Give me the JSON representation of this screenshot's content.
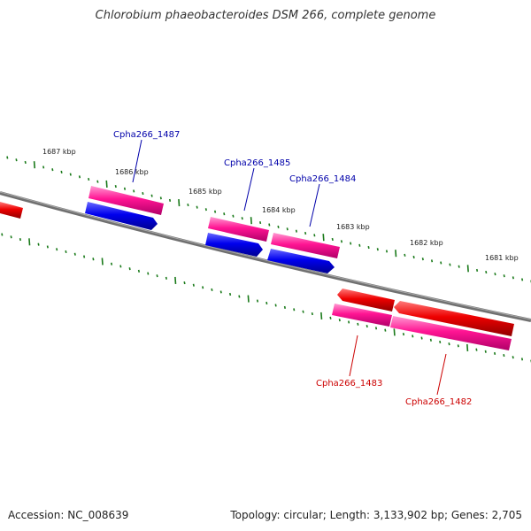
{
  "title": "Chlorobium phaeobacteroides DSM 266, complete genome",
  "footer": {
    "accession": "Accession: NC_008639",
    "summary": "Topology: circular; Length: 3,133,902 bp; Genes: 2,705"
  },
  "scale": {
    "unit": "kbp",
    "ticks": [
      "1687 kbp",
      "1686 kbp",
      "1685 kbp",
      "1684 kbp",
      "1683 kbp",
      "1682 kbp",
      "1681 kbp"
    ]
  },
  "genes": [
    {
      "locus_tag": "Cpha266_1487",
      "strand": "forward",
      "label_color": "#0000aa"
    },
    {
      "locus_tag": "Cpha266_1485",
      "strand": "forward",
      "label_color": "#0000aa"
    },
    {
      "locus_tag": "Cpha266_1484",
      "strand": "forward",
      "label_color": "#0000aa"
    },
    {
      "locus_tag": "Cpha266_1483",
      "strand": "reverse",
      "label_color": "#cc0000"
    },
    {
      "locus_tag": "Cpha266_1482",
      "strand": "reverse",
      "label_color": "#cc0000"
    }
  ],
  "colors": {
    "backbone": "#808080",
    "tick": "#1a7a1a",
    "forward_cds": "#0000ee",
    "reverse_cds": "#ee0000",
    "gene": "#ee1493"
  }
}
